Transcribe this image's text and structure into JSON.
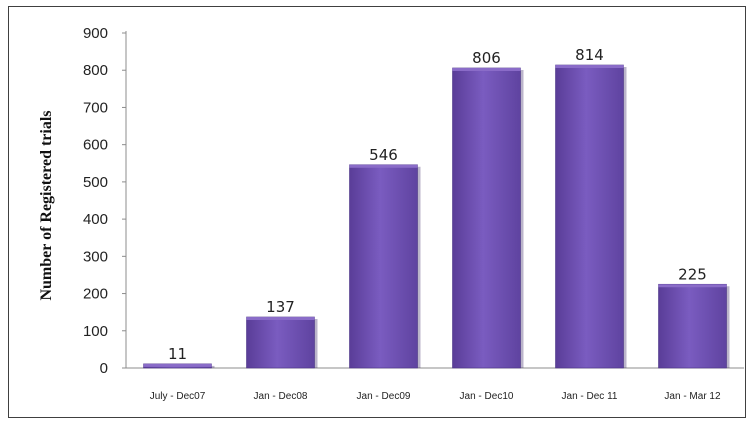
{
  "chart_data": {
    "type": "bar",
    "categories": [
      "July - Dec07",
      "Jan - Dec08",
      "Jan - Dec09",
      "Jan - Dec10",
      "Jan - Dec 11",
      "Jan - Mar 12"
    ],
    "values": [
      11,
      137,
      546,
      806,
      814,
      225
    ],
    "data_labels": [
      "11",
      "137",
      "546",
      "806",
      "814",
      "225"
    ],
    "ylabel": "Number of Registered trials",
    "ylim": [
      0,
      900
    ],
    "yticks": [
      "0",
      "100",
      "200",
      "300",
      "400",
      "500",
      "600",
      "700",
      "800",
      "900"
    ],
    "grid": false,
    "legend": "none",
    "colors": {
      "bar_top": "#8a6cc8",
      "bar_mid": "#6f4fb0",
      "bar_bottom": "#5a3d98",
      "axis": "#8c8c8c"
    }
  }
}
